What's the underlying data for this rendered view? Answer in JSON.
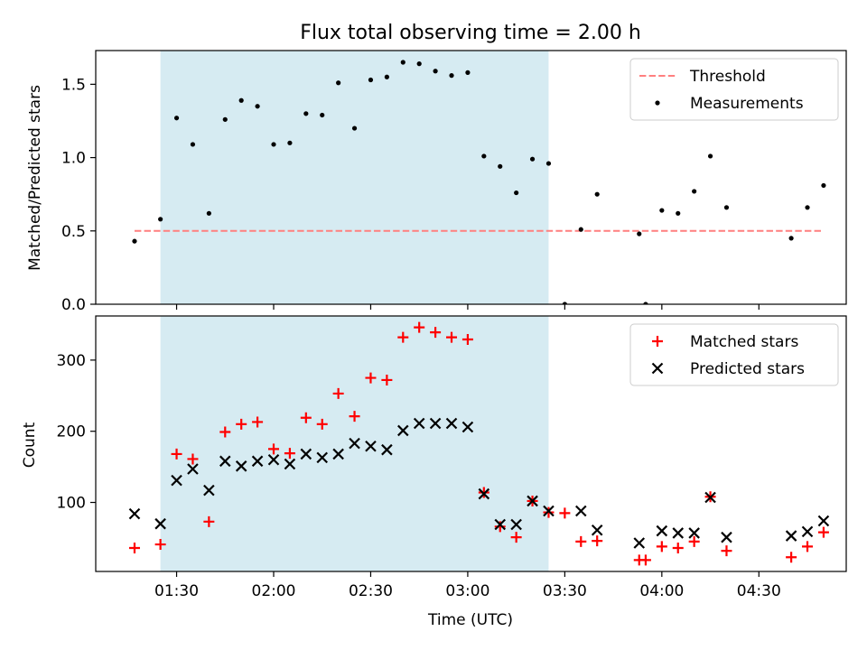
{
  "chart_data": [
    {
      "type": "scatter",
      "title": "Flux total observing time = 2.00 h",
      "xlabel": "",
      "ylabel": "Matched/Predicted stars",
      "xlim": [
        "01:05",
        "04:57"
      ],
      "ylim": [
        0,
        1.73
      ],
      "yticks": [
        0.0,
        0.5,
        1.0,
        1.5
      ],
      "ytick_labels": [
        "0.0",
        "0.5",
        "1.0",
        "1.5"
      ],
      "highlight_span": {
        "start": "01:25",
        "end": "03:25",
        "color": "#add8e6"
      },
      "threshold": {
        "name": "Threshold",
        "x_start": "01:17",
        "x_end": "04:50",
        "y": 0.5,
        "color": "#ff7f7f"
      },
      "legend": {
        "position": "upper right",
        "entries": [
          "Threshold",
          "Measurements"
        ]
      },
      "series": [
        {
          "name": "Measurements",
          "marker": "dot",
          "color": "#000000",
          "points": [
            [
              "01:17",
              0.43
            ],
            [
              "01:25",
              0.58
            ],
            [
              "01:30",
              1.27
            ],
            [
              "01:35",
              1.09
            ],
            [
              "01:40",
              0.62
            ],
            [
              "01:45",
              1.26
            ],
            [
              "01:50",
              1.39
            ],
            [
              "01:55",
              1.35
            ],
            [
              "02:00",
              1.09
            ],
            [
              "02:05",
              1.1
            ],
            [
              "02:10",
              1.3
            ],
            [
              "02:15",
              1.29
            ],
            [
              "02:20",
              1.51
            ],
            [
              "02:25",
              1.2
            ],
            [
              "02:30",
              1.53
            ],
            [
              "02:35",
              1.55
            ],
            [
              "02:40",
              1.65
            ],
            [
              "02:45",
              1.64
            ],
            [
              "02:50",
              1.59
            ],
            [
              "02:55",
              1.56
            ],
            [
              "03:00",
              1.58
            ],
            [
              "03:05",
              1.01
            ],
            [
              "03:10",
              0.94
            ],
            [
              "03:15",
              0.76
            ],
            [
              "03:20",
              0.99
            ],
            [
              "03:25",
              0.96
            ],
            [
              "03:30",
              0.0
            ],
            [
              "03:35",
              0.51
            ],
            [
              "03:40",
              0.75
            ],
            [
              "03:53",
              0.48
            ],
            [
              "03:55",
              0.0
            ],
            [
              "04:00",
              0.64
            ],
            [
              "04:05",
              0.62
            ],
            [
              "04:10",
              0.77
            ],
            [
              "04:15",
              1.01
            ],
            [
              "04:20",
              0.66
            ],
            [
              "04:40",
              0.45
            ],
            [
              "04:45",
              0.66
            ],
            [
              "04:50",
              0.81
            ]
          ]
        }
      ]
    },
    {
      "type": "scatter",
      "title": "",
      "xlabel": "Time (UTC)",
      "ylabel": "Count",
      "xlim": [
        "01:05",
        "04:57"
      ],
      "ylim": [
        3,
        362
      ],
      "yticks": [
        100,
        200,
        300
      ],
      "ytick_labels": [
        "100",
        "200",
        "300"
      ],
      "xticks": [
        "01:30",
        "02:00",
        "02:30",
        "03:00",
        "03:30",
        "04:00",
        "04:30"
      ],
      "xtick_labels": [
        "01:30",
        "02:00",
        "02:30",
        "03:00",
        "03:30",
        "04:00",
        "04:30"
      ],
      "highlight_span": {
        "start": "01:25",
        "end": "03:25",
        "color": "#add8e6"
      },
      "legend": {
        "position": "upper right",
        "entries": [
          "Matched stars",
          "Predicted stars"
        ]
      },
      "series": [
        {
          "name": "Matched stars",
          "marker": "plus",
          "color": "#ff0000",
          "points": [
            [
              "01:17",
              36
            ],
            [
              "01:25",
              41
            ],
            [
              "01:30",
              168
            ],
            [
              "01:35",
              161
            ],
            [
              "01:40",
              73
            ],
            [
              "01:45",
              199
            ],
            [
              "01:50",
              210
            ],
            [
              "01:55",
              213
            ],
            [
              "02:00",
              175
            ],
            [
              "02:05",
              169
            ],
            [
              "02:10",
              219
            ],
            [
              "02:15",
              210
            ],
            [
              "02:20",
              253
            ],
            [
              "02:25",
              221
            ],
            [
              "02:30",
              275
            ],
            [
              "02:35",
              272
            ],
            [
              "02:40",
              332
            ],
            [
              "02:45",
              346
            ],
            [
              "02:50",
              339
            ],
            [
              "02:55",
              332
            ],
            [
              "03:00",
              329
            ],
            [
              "03:05",
              114
            ],
            [
              "03:10",
              66
            ],
            [
              "03:15",
              51
            ],
            [
              "03:20",
              102
            ],
            [
              "03:25",
              86
            ],
            [
              "03:30",
              85
            ],
            [
              "03:35",
              45
            ],
            [
              "03:40",
              46
            ],
            [
              "03:53",
              19
            ],
            [
              "03:55",
              19
            ],
            [
              "04:00",
              38
            ],
            [
              "04:05",
              36
            ],
            [
              "04:10",
              45
            ],
            [
              "04:15",
              108
            ],
            [
              "04:20",
              32
            ],
            [
              "04:40",
              23
            ],
            [
              "04:45",
              38
            ],
            [
              "04:50",
              58
            ]
          ]
        },
        {
          "name": "Predicted stars",
          "marker": "x",
          "color": "#000000",
          "points": [
            [
              "01:17",
              84
            ],
            [
              "01:25",
              70
            ],
            [
              "01:30",
              131
            ],
            [
              "01:35",
              147
            ],
            [
              "01:40",
              117
            ],
            [
              "01:45",
              158
            ],
            [
              "01:50",
              151
            ],
            [
              "01:55",
              158
            ],
            [
              "02:00",
              160
            ],
            [
              "02:05",
              154
            ],
            [
              "02:10",
              168
            ],
            [
              "02:15",
              163
            ],
            [
              "02:20",
              168
            ],
            [
              "02:25",
              183
            ],
            [
              "02:30",
              179
            ],
            [
              "02:35",
              174
            ],
            [
              "02:40",
              201
            ],
            [
              "02:45",
              211
            ],
            [
              "02:50",
              211
            ],
            [
              "02:55",
              211
            ],
            [
              "03:00",
              206
            ],
            [
              "03:05",
              112
            ],
            [
              "03:10",
              69
            ],
            [
              "03:15",
              69
            ],
            [
              "03:20",
              102
            ],
            [
              "03:25",
              88
            ],
            [
              "03:35",
              88
            ],
            [
              "03:40",
              61
            ],
            [
              "03:53",
              43
            ],
            [
              "04:00",
              60
            ],
            [
              "04:05",
              57
            ],
            [
              "04:10",
              57
            ],
            [
              "04:15",
              107
            ],
            [
              "04:20",
              51
            ],
            [
              "04:40",
              53
            ],
            [
              "04:45",
              59
            ],
            [
              "04:50",
              74
            ]
          ]
        }
      ]
    }
  ]
}
